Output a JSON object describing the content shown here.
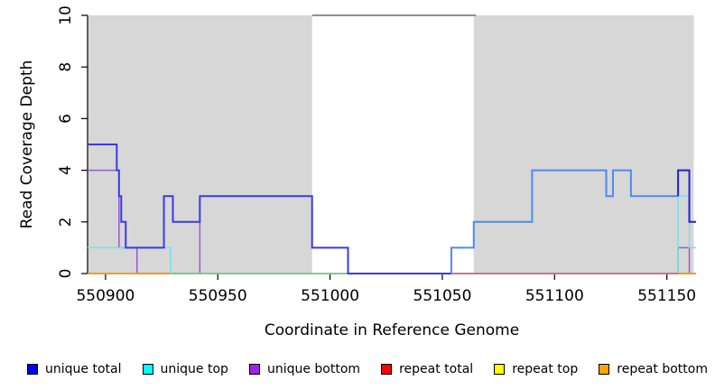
{
  "chart_data": {
    "type": "line",
    "subtype": "step-coverage",
    "title": "",
    "xlabel": "Coordinate in Reference Genome",
    "ylabel": "Read Coverage Depth",
    "xlim": [
      550892,
      551163
    ],
    "ylim": [
      0,
      10
    ],
    "grid": false,
    "x_ticks": [
      550900,
      550950,
      551000,
      551050,
      551100,
      551150
    ],
    "x_tick_labels": [
      "550900",
      "550950",
      "551000",
      "551050",
      "551100",
      "551150"
    ],
    "y_ticks": [
      0,
      2,
      4,
      6,
      8,
      10
    ],
    "y_tick_labels": [
      "0",
      "2",
      "4",
      "6",
      "8",
      "10"
    ],
    "shaded_regions": {
      "color": "#d7d7d7",
      "depth_range": [
        0,
        10
      ],
      "regions": [
        [
          550892,
          550992
        ],
        [
          551064,
          551162
        ]
      ]
    },
    "clip_line": {
      "color": "#8f8f8f",
      "depth": 10,
      "from": 550992,
      "to": 551065
    },
    "series": [
      {
        "name": "unique bottom",
        "color": "#9b59d0",
        "width": 1.5,
        "segments": [
          [
            550892,
            550906,
            4
          ],
          [
            550906,
            550914,
            1
          ],
          [
            550914,
            550942,
            0
          ],
          [
            550942,
            550992,
            3
          ],
          [
            550992,
            551008,
            1
          ],
          [
            551008,
            551155,
            0
          ],
          [
            551155,
            551160,
            1
          ],
          [
            551160,
            551163,
            0
          ]
        ]
      },
      {
        "name": "unique top",
        "color": "#6ee6e6",
        "width": 1.5,
        "segments": [
          [
            550892,
            550929,
            1
          ],
          [
            550929,
            551155,
            0
          ],
          [
            551155,
            551160,
            3
          ],
          [
            551160,
            551163,
            1
          ]
        ]
      },
      {
        "name": "baseline green",
        "color": "#7dc87d",
        "width": 1.5,
        "segments": [
          [
            550930,
            551008,
            0
          ]
        ]
      },
      {
        "name": "repeat total",
        "color": "#e25f74",
        "width": 1.5,
        "segments": [
          [
            551054,
            551163,
            0
          ]
        ]
      },
      {
        "name": "unique total",
        "color": "#3a3aea",
        "width": 2,
        "segments": [
          [
            550892,
            550905,
            5
          ],
          [
            550905,
            550906,
            4
          ],
          [
            550906,
            550907,
            3
          ],
          [
            550907,
            550909,
            2
          ],
          [
            550909,
            550926,
            1
          ],
          [
            550926,
            550930,
            3
          ],
          [
            550930,
            550942,
            2
          ],
          [
            550942,
            550992,
            3
          ],
          [
            550992,
            551008,
            1
          ],
          [
            551008,
            551054,
            0
          ]
        ]
      },
      {
        "name": "unique total",
        "color": "#4d8af0",
        "width": 2,
        "segments": [
          [
            551054,
            551054,
            0
          ],
          [
            551054,
            551064,
            1
          ],
          [
            551064,
            551090,
            2
          ],
          [
            551090,
            551123,
            4
          ],
          [
            551123,
            551126,
            3
          ],
          [
            551126,
            551134,
            4
          ],
          [
            551134,
            551155,
            3
          ]
        ]
      },
      {
        "name": "unique total",
        "color": "#2121d6",
        "width": 2,
        "segments": [
          [
            551155,
            551155,
            3
          ],
          [
            551155,
            551160,
            4
          ],
          [
            551160,
            551163,
            2
          ]
        ]
      },
      {
        "name": "repeat bottom",
        "color": "#ff9d00",
        "width": 1.8,
        "segments": [
          [
            550892,
            550929,
            0
          ],
          [
            551155,
            551163,
            0
          ]
        ]
      }
    ],
    "legend_position": "bottom"
  },
  "legend": {
    "items": [
      {
        "label": "unique total",
        "color": "#0000f5"
      },
      {
        "label": "unique top",
        "color": "#00ffff"
      },
      {
        "label": "unique bottom",
        "color": "#a020f0"
      },
      {
        "label": "repeat total",
        "color": "#ff0000"
      },
      {
        "label": "repeat top",
        "color": "#ffff00"
      },
      {
        "label": "repeat bottom",
        "color": "#ffa500"
      }
    ]
  }
}
